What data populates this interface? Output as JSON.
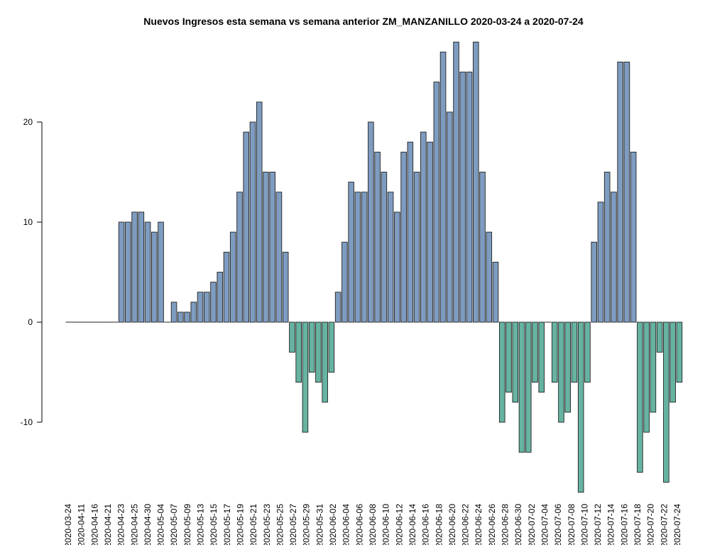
{
  "chart_data": {
    "type": "bar",
    "title": "Nuevos Ingresos esta semana vs semana anterior ZM_MANZANILLO 2020-03-24 a 2020-07-24",
    "xlabel": "",
    "ylabel": "",
    "ylim": [
      -17,
      28
    ],
    "yticks": [
      -10,
      0,
      10,
      20
    ],
    "colors": {
      "positive": "#7e9cc0",
      "negative": "#66b3a2",
      "outline": "#222222"
    },
    "x_tick_labels": [
      "2020-03-24",
      "2020-04-11",
      "2020-04-16",
      "2020-04-21",
      "2020-04-23",
      "2020-04-25",
      "2020-04-30",
      "2020-05-04",
      "2020-05-07",
      "2020-05-09",
      "2020-05-13",
      "2020-05-15",
      "2020-05-17",
      "2020-05-19",
      "2020-05-21",
      "2020-05-23",
      "2020-05-25",
      "2020-05-27",
      "2020-05-29",
      "2020-05-31",
      "2020-06-02",
      "2020-06-04",
      "2020-06-06",
      "2020-06-08",
      "2020-06-10",
      "2020-06-12",
      "2020-06-14",
      "2020-06-16",
      "2020-06-18",
      "2020-06-20",
      "2020-06-22",
      "2020-06-24",
      "2020-06-26",
      "2020-06-28",
      "2020-06-30",
      "2020-07-02",
      "2020-07-04",
      "2020-07-06",
      "2020-07-08",
      "2020-07-10",
      "2020-07-12",
      "2020-07-14",
      "2020-07-16",
      "2020-07-18",
      "2020-07-20",
      "2020-07-22",
      "2020-07-24"
    ],
    "values": [
      0,
      0,
      0,
      0,
      0,
      0,
      0,
      0,
      10,
      10,
      11,
      11,
      10,
      9,
      10,
      0,
      2,
      1,
      1,
      2,
      3,
      3,
      4,
      5,
      7,
      9,
      13,
      19,
      20,
      22,
      15,
      15,
      13,
      7,
      -3,
      -6,
      -11,
      -5,
      -6,
      -8,
      -5,
      3,
      8,
      14,
      13,
      13,
      20,
      17,
      15,
      13,
      11,
      17,
      18,
      15,
      19,
      18,
      24,
      27,
      21,
      28,
      25,
      25,
      28,
      15,
      9,
      6,
      -10,
      -7,
      -8,
      -13,
      -13,
      -6,
      -7,
      0,
      -6,
      -10,
      -9,
      -6,
      -17,
      -6,
      8,
      12,
      15,
      13,
      26,
      26,
      17,
      -15,
      -11,
      -9,
      -3,
      -16,
      -8,
      -6
    ]
  }
}
